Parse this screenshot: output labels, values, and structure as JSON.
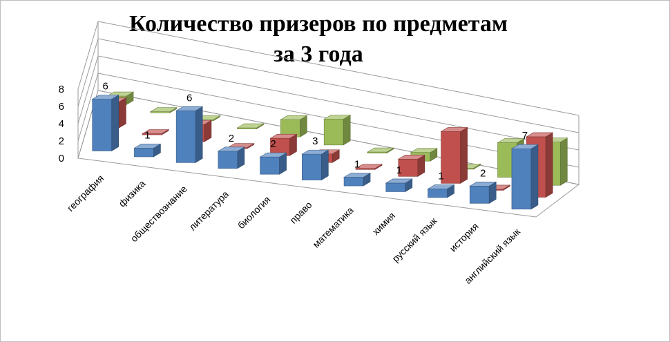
{
  "chart_data": {
    "type": "bar",
    "style": "3d-clustered-column",
    "title": "Количество призеров по предметам за 3 года",
    "title_lines": [
      "Количество призеров по предметам",
      "за 3 года"
    ],
    "categories": [
      "география",
      "физика",
      "обществознание",
      "литература",
      "биология",
      "право",
      "математика",
      "химия",
      "русский язык",
      "история",
      "английский язык"
    ],
    "series": [
      {
        "color": "#4f81bd",
        "values": [
          6,
          1,
          6,
          2,
          2,
          3,
          1,
          1,
          1,
          2,
          7
        ]
      },
      {
        "color": "#c0504d",
        "values": [
          3,
          0,
          2,
          0,
          2,
          1,
          0,
          2,
          6,
          0,
          7
        ]
      },
      {
        "color": "#9bbb59",
        "values": [
          1,
          0,
          0,
          0,
          2,
          3,
          0,
          1,
          0,
          4,
          5
        ]
      }
    ],
    "data_labels": [
      {
        "series": 0,
        "index": 0,
        "text": "6"
      },
      {
        "series": 0,
        "index": 1,
        "text": "1"
      },
      {
        "series": 0,
        "index": 2,
        "text": "6"
      },
      {
        "series": 0,
        "index": 3,
        "text": "2"
      },
      {
        "series": 0,
        "index": 4,
        "text": "2"
      },
      {
        "series": 0,
        "index": 5,
        "text": "3"
      },
      {
        "series": 0,
        "index": 6,
        "text": "1"
      },
      {
        "series": 0,
        "index": 7,
        "text": "1"
      },
      {
        "series": 0,
        "index": 8,
        "text": "1"
      },
      {
        "series": 0,
        "index": 9,
        "text": "2"
      },
      {
        "series": 0,
        "index": 10,
        "text": "7"
      }
    ],
    "y_ticks": [
      "0",
      "2",
      "4",
      "6",
      "8"
    ],
    "ylim": [
      0,
      8
    ],
    "grid": true,
    "legend": "none"
  }
}
